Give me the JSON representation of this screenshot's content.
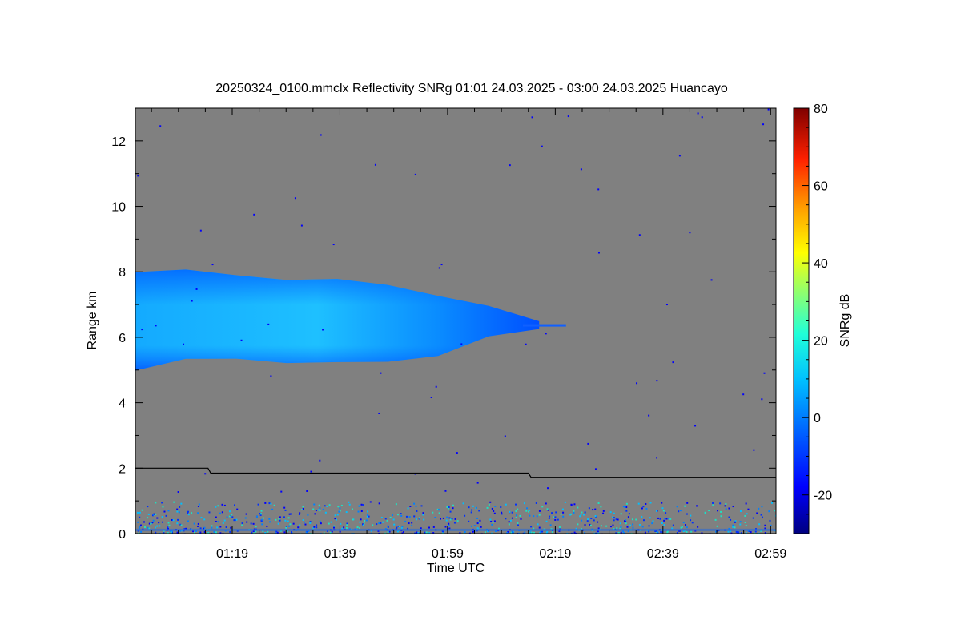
{
  "chart_data": {
    "type": "heatmap",
    "title": "20250324_0100.mmclx Reflectivity SNRg   01:01 24.03.2025 - 03:00 24.03.2025 Huancayo",
    "xlabel": "Time UTC",
    "ylabel": "Range km",
    "x_tick_labels": [
      "01:19",
      "01:39",
      "01:59",
      "02:19",
      "02:39",
      "02:59"
    ],
    "x_tick_values_min": [
      79,
      99,
      119,
      139,
      159,
      179
    ],
    "xlim_min": [
      61,
      180
    ],
    "y_tick_labels": [
      "0",
      "2",
      "4",
      "6",
      "8",
      "10",
      "12"
    ],
    "y_tick_values": [
      0,
      2,
      4,
      6,
      8,
      10,
      12
    ],
    "ylim": [
      0,
      13
    ],
    "colorbar": {
      "label": "SNRg dB",
      "range": [
        -30,
        80
      ],
      "tick_labels": [
        "-20",
        "0",
        "20",
        "40",
        "60",
        "80"
      ],
      "tick_values": [
        -20,
        0,
        20,
        40,
        60,
        80
      ],
      "colormap": "jet"
    },
    "background_color": "#808080",
    "cloud_layer": {
      "start_min": 61,
      "end_min": 136,
      "base_km": [
        5.0,
        5.3,
        5.3,
        5.2,
        5.2,
        5.3,
        5.4,
        6.0,
        6.3
      ],
      "top_km": [
        8.0,
        8.05,
        7.9,
        7.8,
        7.8,
        7.6,
        7.3,
        7.0,
        6.45
      ],
      "snr_db": [
        -2,
        4
      ]
    },
    "line_series": {
      "name": "",
      "color": "#000000",
      "points": [
        [
          61,
          2.0
        ],
        [
          74.5,
          2.0
        ],
        [
          75,
          1.85
        ],
        [
          134,
          1.85
        ],
        [
          134.5,
          1.72
        ],
        [
          180,
          1.72
        ]
      ]
    },
    "near_surface_noise": {
      "range_km": [
        0,
        1.0
      ],
      "snr_db": [
        -20,
        5
      ]
    }
  }
}
